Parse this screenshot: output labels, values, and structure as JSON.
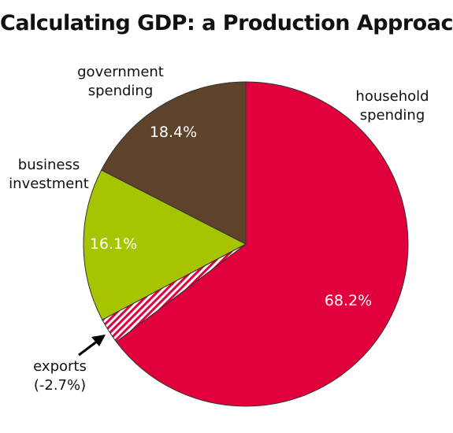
{
  "chart_data": {
    "type": "pie",
    "title": "Calculating GDP:  a Production Approach",
    "slices": [
      {
        "label": "household spending",
        "label_lines": [
          "household",
          "spending"
        ],
        "value": 68.2,
        "display": "68.2%",
        "color": "#e1003c"
      },
      {
        "label": "exports",
        "label_lines": [
          "exports",
          "(-2.7%)"
        ],
        "value": -2.7,
        "display": "",
        "color": "#e1003c",
        "pattern": "hatch"
      },
      {
        "label": "business investment",
        "label_lines": [
          "business",
          "investment"
        ],
        "value": 16.1,
        "display": "16.1%",
        "color": "#a8c300"
      },
      {
        "label": "government spending",
        "label_lines": [
          "government",
          "spending"
        ],
        "value": 18.4,
        "display": "18.4%",
        "color": "#5e432b"
      }
    ],
    "legend": "none"
  }
}
